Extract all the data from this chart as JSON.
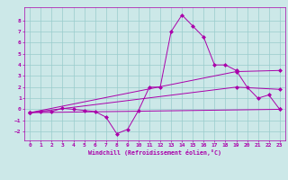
{
  "xlabel": "Windchill (Refroidissement éolien,°C)",
  "background_color": "#cce8e8",
  "line_color": "#aa00aa",
  "grid_color": "#99cccc",
  "xlim": [
    -0.5,
    23.5
  ],
  "ylim": [
    -2.8,
    9.2
  ],
  "xticks": [
    0,
    1,
    2,
    3,
    4,
    5,
    6,
    7,
    8,
    9,
    10,
    11,
    12,
    13,
    14,
    15,
    16,
    17,
    18,
    19,
    20,
    21,
    22,
    23
  ],
  "yticks": [
    -2,
    -1,
    0,
    1,
    2,
    3,
    4,
    5,
    6,
    7,
    8
  ],
  "series": [
    {
      "x": [
        0,
        1,
        2,
        3,
        4,
        5,
        6,
        7,
        8,
        9,
        10,
        11,
        12,
        13,
        14,
        15,
        16,
        17,
        18,
        19,
        20,
        21,
        22,
        23
      ],
      "y": [
        -0.3,
        -0.2,
        -0.2,
        0.1,
        0.0,
        -0.1,
        -0.2,
        -0.7,
        -2.2,
        -1.8,
        -0.1,
        2.0,
        2.0,
        7.0,
        8.5,
        7.5,
        6.5,
        4.0,
        4.0,
        3.5,
        2.0,
        1.0,
        1.3,
        0.0
      ]
    },
    {
      "x": [
        0,
        23
      ],
      "y": [
        -0.3,
        0.0
      ]
    },
    {
      "x": [
        0,
        19,
        23
      ],
      "y": [
        -0.3,
        3.4,
        3.5
      ]
    },
    {
      "x": [
        0,
        19,
        23
      ],
      "y": [
        -0.3,
        2.0,
        1.8
      ]
    }
  ]
}
